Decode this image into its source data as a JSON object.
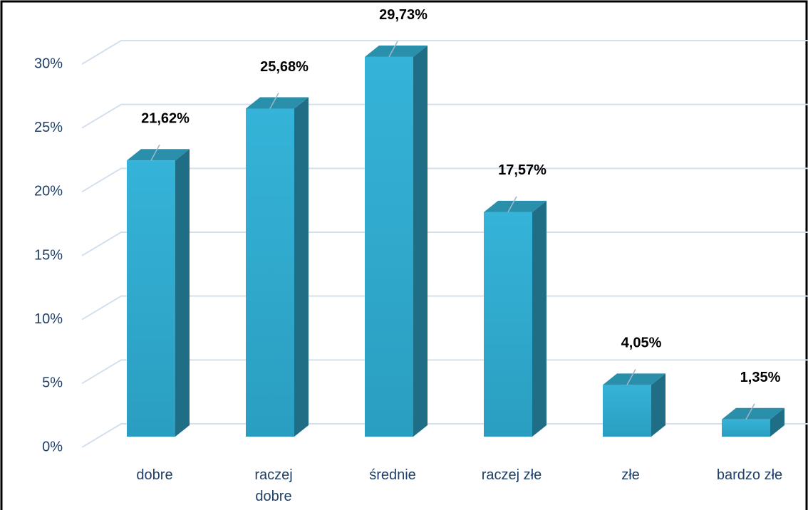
{
  "chart_data": {
    "type": "bar3d",
    "categories": [
      "dobre",
      "raczej dobre",
      "średnie",
      "raczej złe",
      "złe",
      "bardzo złe"
    ],
    "values": [
      21.62,
      25.68,
      29.73,
      17.57,
      4.05,
      1.35
    ],
    "value_labels": [
      "21,62%",
      "25,68%",
      "29,73%",
      "17,57%",
      "4,05%",
      "1,35%"
    ],
    "color": "#35b3d8",
    "ylim": [
      0,
      30
    ],
    "yticks": [
      {
        "value": 0,
        "label": "0%"
      },
      {
        "value": 5,
        "label": "5%"
      },
      {
        "value": 10,
        "label": "10%"
      },
      {
        "value": 15,
        "label": "15%"
      },
      {
        "value": 20,
        "label": "20%"
      },
      {
        "value": 25,
        "label": "25%"
      },
      {
        "value": 30,
        "label": "30%"
      }
    ],
    "grid": true
  }
}
